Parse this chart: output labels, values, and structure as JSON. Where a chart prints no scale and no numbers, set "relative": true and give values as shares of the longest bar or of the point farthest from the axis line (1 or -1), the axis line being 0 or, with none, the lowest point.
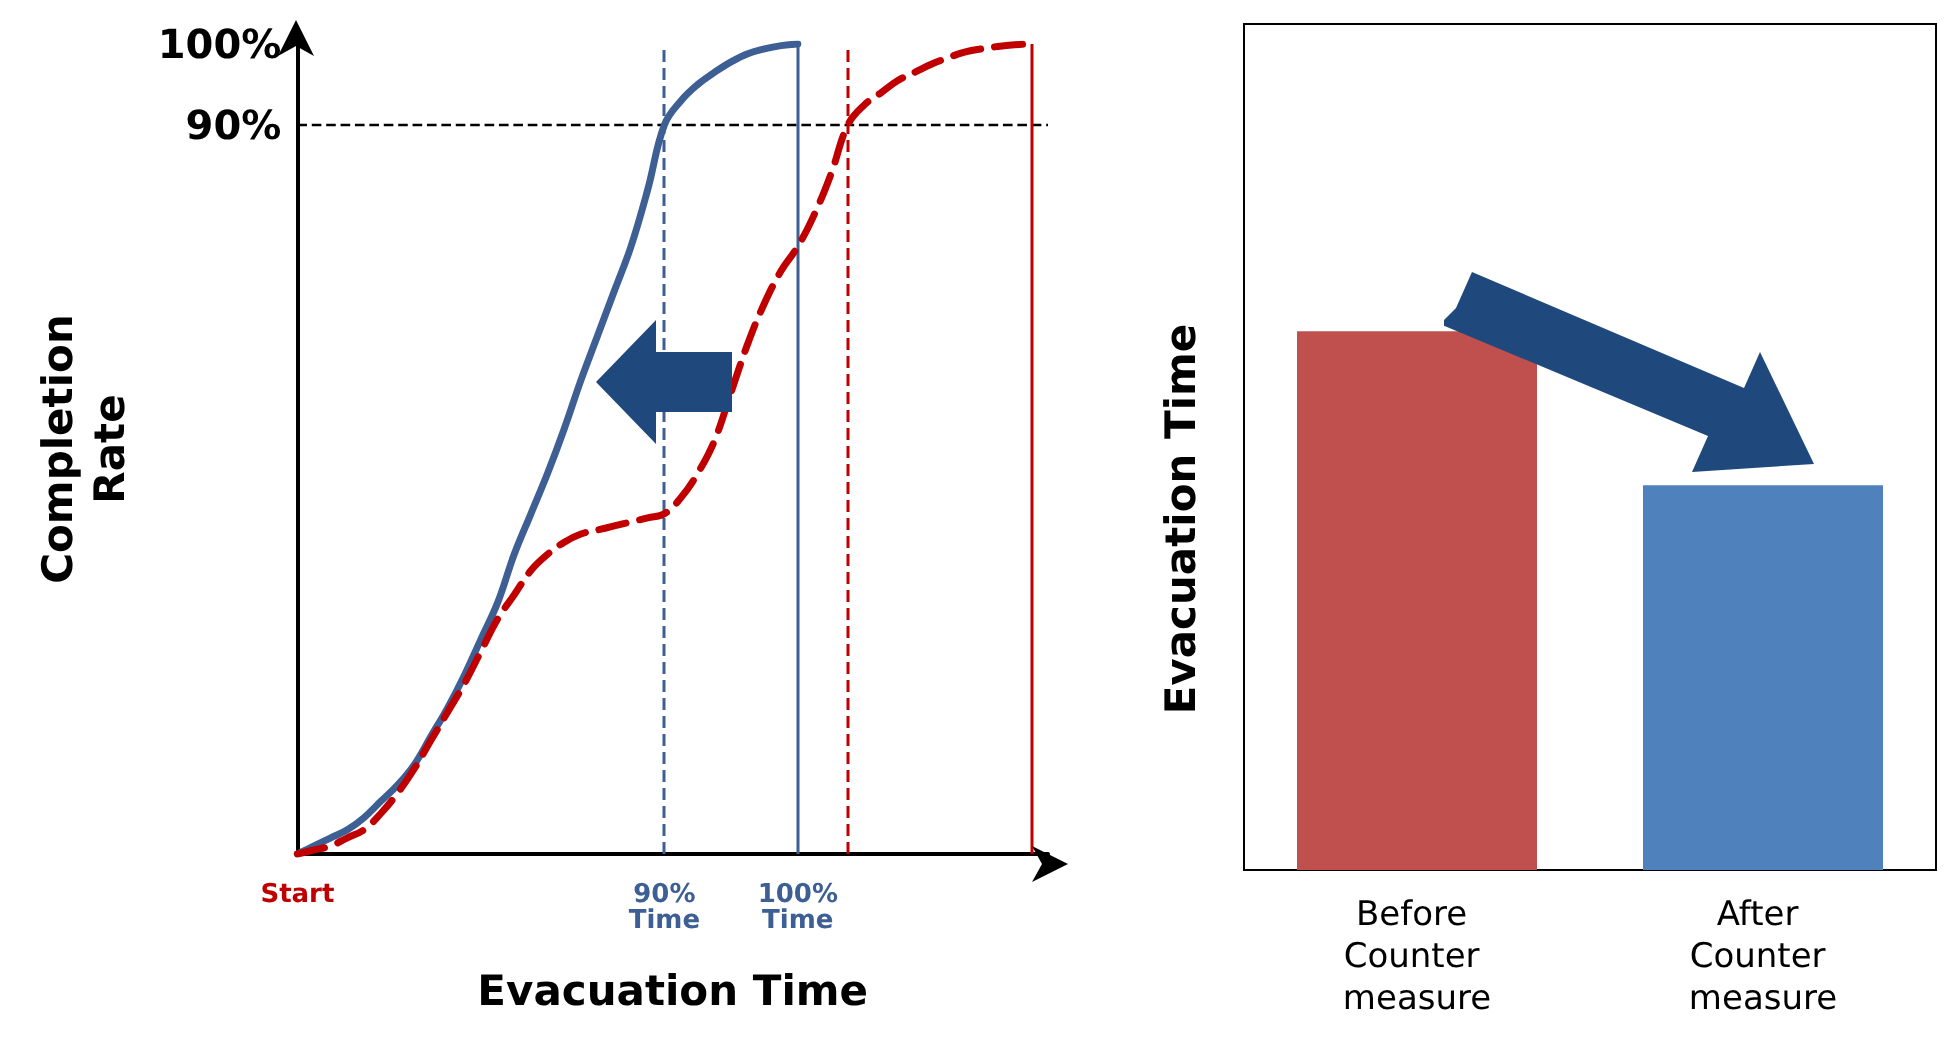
{
  "chart_data": [
    {
      "type": "line",
      "xlabel": "Evacuation Time",
      "ylabel": "Completion Rate",
      "ylim": [
        0,
        100
      ],
      "categories": [
        "Start",
        null,
        null,
        null,
        null,
        null,
        null,
        null,
        null,
        null,
        null,
        null,
        null,
        null,
        null,
        null,
        null,
        null,
        null,
        null,
        null,
        null,
        "90%\nTime",
        null,
        null,
        null,
        null,
        null,
        null,
        null,
        "100%\nTime",
        null,
        null,
        null,
        null,
        null,
        null,
        null,
        null,
        null,
        null,
        null,
        null,
        null,
        null,
        null
      ],
      "yticks": [
        {
          "value": 90,
          "label": "90%"
        },
        {
          "value": 100,
          "label": "100%"
        }
      ],
      "marker": "none",
      "grid": false,
      "series": [
        {
          "color": "#3d5f94",
          "line_style": "solid",
          "values": [
            0,
            1,
            2,
            3,
            4.5,
            6.5,
            8.5,
            11,
            14.5,
            18,
            22,
            26.5,
            31,
            37,
            42,
            47,
            52.5,
            58.5,
            64,
            69.5,
            75,
            82,
            90,
            93,
            95,
            96.5,
            97.8,
            98.8,
            99.4,
            99.8,
            100,
            null,
            null,
            null,
            null,
            null,
            null,
            null,
            null,
            null,
            null,
            null,
            null,
            null,
            null,
            null
          ]
        },
        {
          "color": "#c00000",
          "line_style": "dashed",
          "values": [
            0,
            0.5,
            1,
            2,
            3,
            5,
            7.5,
            10.5,
            14,
            17.5,
            21,
            25,
            29,
            32,
            35,
            37,
            38.5,
            39.5,
            40,
            40.5,
            41,
            41.5,
            42,
            44,
            47,
            51,
            57,
            63,
            68,
            72,
            75,
            79,
            84,
            90,
            92.5,
            94,
            95.5,
            96.5,
            97.5,
            98.3,
            99,
            99.4,
            99.7,
            99.9,
            100,
            null
          ]
        }
      ],
      "ref_lines": [
        {
          "axis": "y",
          "value": 90,
          "color": "#000000",
          "line_style": "dashed"
        }
      ]
    },
    {
      "type": "bar",
      "ylabel": "Evacuation Time",
      "relative": true,
      "grid": false,
      "categories": [
        "Before Counter measure",
        "After Counter measure"
      ],
      "values": [
        1,
        0.714
      ],
      "colors": [
        "#c0504d",
        "#4f81bd"
      ]
    }
  ]
}
